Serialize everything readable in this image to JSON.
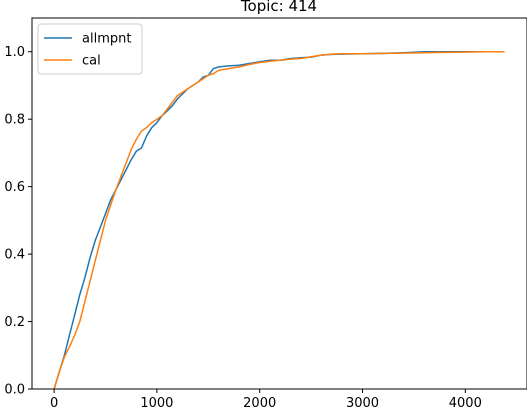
{
  "chart_data": {
    "type": "line",
    "title": "Topic: 414",
    "xlabel": "",
    "ylabel": "",
    "xlim": [
      -215,
      4600
    ],
    "ylim": [
      0.0,
      1.1
    ],
    "xticks": [
      0,
      1000,
      2000,
      3000,
      4000
    ],
    "yticks": [
      0.0,
      0.2,
      0.4,
      0.6,
      0.8,
      1.0
    ],
    "xtick_labels": [
      "0",
      "1000",
      "2000",
      "3000",
      "4000"
    ],
    "ytick_labels": [
      "0.0",
      "0.2",
      "0.4",
      "0.6",
      "0.8",
      "1.0"
    ],
    "grid": false,
    "legend_position": "top-left",
    "series": [
      {
        "name": "allmpnt",
        "color": "#1f77b4",
        "x": [
          0,
          50,
          100,
          150,
          200,
          250,
          300,
          350,
          400,
          450,
          500,
          550,
          600,
          650,
          700,
          750,
          800,
          850,
          900,
          950,
          1000,
          1050,
          1100,
          1150,
          1200,
          1250,
          1300,
          1350,
          1400,
          1450,
          1500,
          1550,
          1600,
          1700,
          1800,
          1900,
          2000,
          2100,
          2200,
          2300,
          2400,
          2500,
          2600,
          2700,
          2800,
          3000,
          3200,
          3400,
          3600,
          3800,
          4000,
          4200,
          4380
        ],
        "y": [
          0.0,
          0.05,
          0.1,
          0.16,
          0.22,
          0.28,
          0.33,
          0.39,
          0.44,
          0.48,
          0.52,
          0.56,
          0.59,
          0.62,
          0.65,
          0.68,
          0.705,
          0.715,
          0.75,
          0.775,
          0.79,
          0.81,
          0.825,
          0.84,
          0.86,
          0.875,
          0.89,
          0.9,
          0.91,
          0.925,
          0.93,
          0.95,
          0.955,
          0.958,
          0.96,
          0.965,
          0.97,
          0.975,
          0.975,
          0.98,
          0.982,
          0.984,
          0.99,
          0.992,
          0.993,
          0.994,
          0.995,
          0.997,
          1.0,
          1.0,
          1.0,
          1.0,
          1.0
        ]
      },
      {
        "name": "cal",
        "color": "#ff7f0e",
        "x": [
          0,
          50,
          100,
          150,
          200,
          250,
          300,
          350,
          400,
          450,
          500,
          550,
          600,
          650,
          700,
          750,
          800,
          850,
          900,
          950,
          1000,
          1050,
          1100,
          1150,
          1200,
          1250,
          1300,
          1350,
          1400,
          1450,
          1500,
          1550,
          1600,
          1700,
          1800,
          1900,
          2000,
          2100,
          2200,
          2300,
          2400,
          2500,
          2600,
          2700,
          2800,
          3000,
          3200,
          3400,
          3600,
          3800,
          4000,
          4200,
          4380
        ],
        "y": [
          0.0,
          0.05,
          0.095,
          0.125,
          0.16,
          0.2,
          0.26,
          0.32,
          0.38,
          0.44,
          0.5,
          0.545,
          0.59,
          0.63,
          0.67,
          0.71,
          0.74,
          0.765,
          0.775,
          0.79,
          0.8,
          0.81,
          0.83,
          0.85,
          0.87,
          0.88,
          0.89,
          0.9,
          0.91,
          0.92,
          0.93,
          0.935,
          0.945,
          0.95,
          0.955,
          0.962,
          0.968,
          0.972,
          0.975,
          0.978,
          0.98,
          0.985,
          0.99,
          0.993,
          0.994,
          0.994,
          0.995,
          0.996,
          0.997,
          0.998,
          0.999,
          1.0,
          1.0
        ]
      }
    ]
  }
}
